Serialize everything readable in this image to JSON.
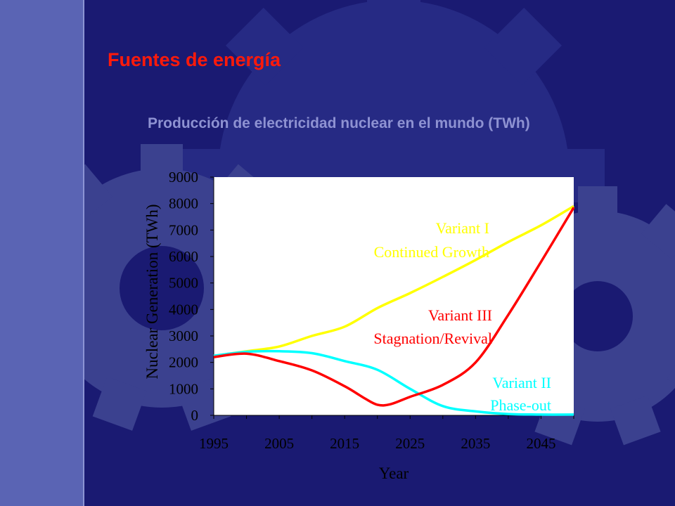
{
  "slide": {
    "title": "Fuentes de energía",
    "subtitle": "Producción de electricidad nuclear en el mundo (TWh)"
  },
  "colors": {
    "background": "#1a1a72",
    "sidebar": "#5a64b4",
    "title": "#ff1a0a",
    "subtitle": "#8e92d2",
    "plot_area": "#ffffff"
  },
  "chart_data": {
    "type": "line",
    "title": "",
    "xlabel": "Year",
    "ylabel": "Nuclear Generation (TWh)",
    "xlim": [
      1995,
      2050
    ],
    "ylim": [
      0,
      9000
    ],
    "x_ticks": [
      1995,
      2005,
      2015,
      2025,
      2035,
      2045
    ],
    "y_ticks": [
      0,
      1000,
      2000,
      3000,
      4000,
      5000,
      6000,
      7000,
      8000,
      9000
    ],
    "grid": false,
    "series": [
      {
        "name": "Variant I Continued Growth",
        "label_lines": [
          "Variant I",
          "Continued Growth"
        ],
        "color": "#ffff00",
        "x": [
          1995,
          2000,
          2005,
          2010,
          2015,
          2020,
          2025,
          2030,
          2035,
          2040,
          2045,
          2050
        ],
        "values": [
          2250,
          2420,
          2600,
          3000,
          3350,
          4050,
          4620,
          5230,
          5870,
          6550,
          7180,
          7900
        ]
      },
      {
        "name": "Variant II Phase-out",
        "label_lines": [
          "Variant II",
          "Phase-out"
        ],
        "color": "#00ffff",
        "x": [
          1995,
          2000,
          2005,
          2010,
          2015,
          2020,
          2025,
          2030,
          2035,
          2040,
          2045,
          2050
        ],
        "values": [
          2250,
          2400,
          2420,
          2350,
          2050,
          1720,
          1000,
          350,
          150,
          50,
          30,
          30
        ]
      },
      {
        "name": "Variant III Stagnation/Revival",
        "label_lines": [
          "Variant III",
          "Stagnation/Revival"
        ],
        "color": "#ff0000",
        "x": [
          1995,
          2000,
          2005,
          2010,
          2015,
          2018,
          2020,
          2022,
          2025,
          2030,
          2035,
          2040,
          2045,
          2050
        ],
        "values": [
          2200,
          2330,
          2050,
          1700,
          1100,
          650,
          400,
          420,
          700,
          1150,
          2000,
          3800,
          5800,
          7850
        ]
      }
    ]
  }
}
